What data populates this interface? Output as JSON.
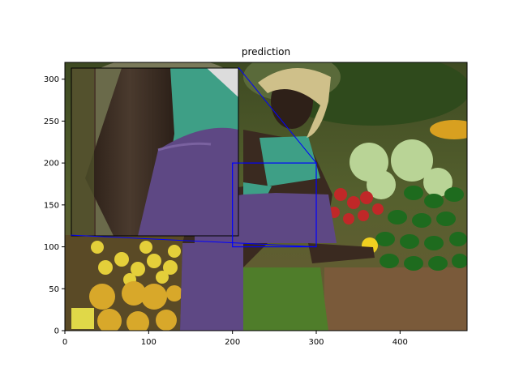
{
  "chart_data": {
    "type": "image",
    "title": "prediction",
    "xlabel": "",
    "ylabel": "",
    "xlim": [
      0,
      480
    ],
    "ylim": [
      0,
      320
    ],
    "xticks": [
      0,
      100,
      200,
      300,
      400
    ],
    "yticks": [
      0,
      50,
      100,
      150,
      200,
      250,
      300
    ],
    "grid": false,
    "legend": "none",
    "zoom_region": {
      "x": [
        200,
        300
      ],
      "y": [
        100,
        200
      ]
    },
    "inset": {
      "x": [
        7,
        207
      ],
      "y": [
        114,
        314
      ]
    },
    "colors": {
      "zoom_box": "#0000ff",
      "sky_foliage": "#4a5a2a",
      "skin": "#3a2a20",
      "headscarf": "#cfc08a",
      "green_top": "#3e9f86",
      "purple_wrap": "#5e4884",
      "green_skirt": "#4f7d2a",
      "cabbage": "#b9d496",
      "cucumbers": "#1e6b1e",
      "peppers": "#c02828",
      "oranges": "#d8a82a",
      "lemons": "#e4cf3a",
      "ground": "#7a5a3a"
    }
  }
}
